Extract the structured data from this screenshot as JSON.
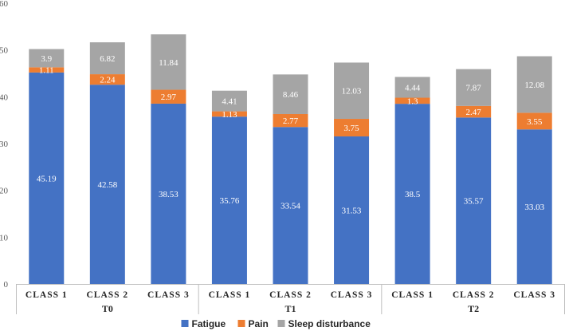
{
  "chart_data": {
    "type": "bar",
    "stacked": true,
    "title": "",
    "xlabel": "",
    "ylabel": "",
    "ylim": [
      0,
      60
    ],
    "yticks": [
      0,
      10,
      20,
      30,
      40,
      50,
      60
    ],
    "gridlines": false,
    "legend_position": "bottom",
    "groups": [
      {
        "label": "T0",
        "categories": [
          "CLASS 1",
          "CLASS 2",
          "CLASS 3"
        ]
      },
      {
        "label": "T1",
        "categories": [
          "CLASS 1",
          "CLASS 2",
          "CLASS 3"
        ]
      },
      {
        "label": "T2",
        "categories": [
          "CLASS 1",
          "CLASS 2",
          "CLASS 3"
        ]
      }
    ],
    "categories": [
      "CLASS 1",
      "CLASS 2",
      "CLASS 3",
      "CLASS 1",
      "CLASS 2",
      "CLASS 3",
      "CLASS 1",
      "CLASS 2",
      "CLASS 3"
    ],
    "series": [
      {
        "name": "Fatigue",
        "color": "#4472C4",
        "values": [
          45.19,
          42.58,
          38.53,
          35.76,
          33.54,
          31.53,
          38.5,
          35.57,
          33.03
        ]
      },
      {
        "name": "Pain",
        "color": "#ED7D31",
        "values": [
          1.11,
          2.24,
          2.97,
          1.13,
          2.77,
          3.75,
          1.3,
          2.47,
          3.55
        ]
      },
      {
        "name": "Sleep disturbance",
        "color": "#A5A5A5",
        "values": [
          3.9,
          6.82,
          11.84,
          4.41,
          8.46,
          12.03,
          4.44,
          7.87,
          12.08
        ]
      }
    ]
  }
}
